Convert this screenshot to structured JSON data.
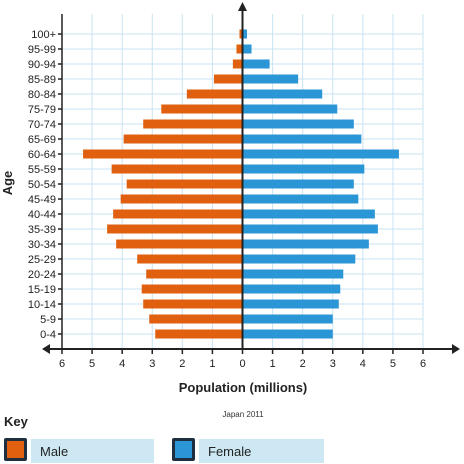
{
  "chart_data": {
    "type": "bar",
    "orientation": "horizontal",
    "layout": "population-pyramid",
    "caption": "Japan 2011",
    "xlabel": "Population (millions)",
    "ylabel": "Age",
    "xlim": [
      -6,
      6
    ],
    "xticks": [
      6,
      5,
      4,
      3,
      2,
      1,
      0,
      1,
      2,
      3,
      4,
      5,
      6
    ],
    "grid": true,
    "categories": [
      "0-4",
      "5-9",
      "10-14",
      "15-19",
      "20-24",
      "25-29",
      "30-34",
      "35-39",
      "40-44",
      "45-49",
      "50-54",
      "55-59",
      "60-64",
      "65-69",
      "70-74",
      "75-79",
      "80-84",
      "85-89",
      "90-94",
      "95-99",
      "100+"
    ],
    "series": [
      {
        "name": "Male",
        "color": "#e0600f",
        "side": "left",
        "values": [
          2.9,
          3.1,
          3.3,
          3.35,
          3.2,
          3.5,
          4.2,
          4.5,
          4.3,
          4.05,
          3.85,
          4.35,
          5.3,
          3.95,
          3.3,
          2.7,
          1.85,
          0.95,
          0.32,
          0.2,
          0.1
        ]
      },
      {
        "name": "Female",
        "color": "#2b96d6",
        "side": "right",
        "values": [
          3.0,
          3.0,
          3.2,
          3.25,
          3.35,
          3.75,
          4.2,
          4.5,
          4.4,
          3.85,
          3.7,
          4.05,
          5.2,
          3.95,
          3.7,
          3.15,
          2.65,
          1.85,
          0.9,
          0.3,
          0.15
        ]
      }
    ]
  },
  "key": {
    "title": "Key",
    "items": [
      {
        "label": "Male",
        "color": "#e0600f"
      },
      {
        "label": "Female",
        "color": "#2b96d6"
      }
    ]
  }
}
